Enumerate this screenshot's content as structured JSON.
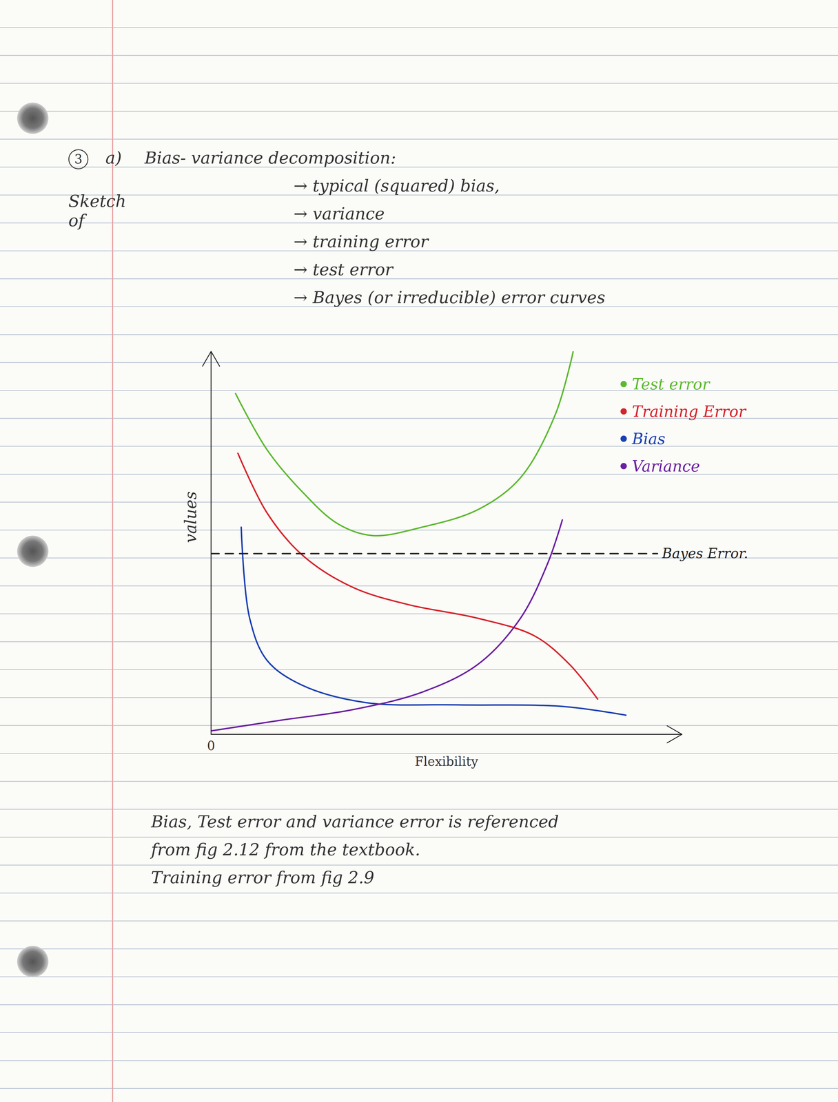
{
  "header": {
    "number": "3",
    "part": "a)",
    "title": "Bias- variance decomposition:",
    "lead": "Sketch of",
    "items": [
      "typical (squared) bias,",
      "variance",
      "training error",
      "test error",
      "Bayes (or irreducible) error curves"
    ]
  },
  "chart_data": {
    "type": "line",
    "xlabel": "Flexibility",
    "ylabel": "values",
    "xlim": [
      0,
      100
    ],
    "ylim": [
      0,
      100
    ],
    "xticks": [
      0
    ],
    "yticks": [],
    "tick_labels": "x",
    "legend": "upper right",
    "series": [
      {
        "name": "Test error",
        "color": "#5cb82e",
        "x": [
          5.2,
          11.9,
          19.4,
          26.9,
          34.3,
          44.8,
          56.7,
          65.7,
          73.1,
          76.9
        ],
        "values": [
          89,
          74.3,
          63.3,
          55,
          51.9,
          54.1,
          58.7,
          67,
          83.5,
          100
        ]
      },
      {
        "name": "Training Error",
        "color": "#d4232b",
        "x": [
          5.7,
          11.9,
          19.4,
          29.9,
          41.8,
          56.7,
          68.7,
          76.1,
          82.1
        ],
        "values": [
          73.4,
          57.8,
          46.8,
          38.5,
          33.9,
          30.3,
          25.7,
          18.3,
          9.2
        ]
      },
      {
        "name": "Bias",
        "color": "#1a3fb0",
        "x": [
          6.4,
          8.2,
          11.9,
          19.4,
          32.8,
          52.2,
          74.6,
          88.1
        ],
        "values": [
          54.1,
          30.3,
          19.3,
          12.8,
          8.3,
          7.7,
          7.3,
          5.0
        ]
      },
      {
        "name": "Variance",
        "color": "#6a1fa0",
        "x": [
          0,
          14.9,
          29.9,
          44.8,
          56.7,
          65.7,
          71.6,
          74.6
        ],
        "values": [
          0.9,
          3.7,
          6.4,
          11,
          18.3,
          30.3,
          45,
          56
        ]
      },
      {
        "name": "Bayes Error.",
        "color": "#222222",
        "line_style": "dashed",
        "x": [
          0,
          94.8
        ],
        "values": [
          47.2,
          47.2
        ]
      }
    ]
  },
  "notes": [
    "Bias, Test error and variance error is referenced",
    "from fig 2.12 from the textbook.",
    "Training error from fig 2.9"
  ]
}
